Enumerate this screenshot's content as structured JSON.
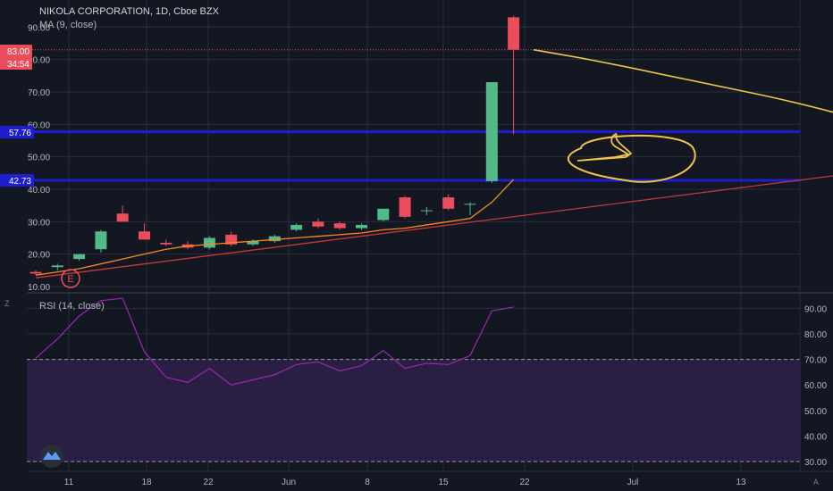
{
  "colors": {
    "background": "#131722",
    "grid": "#2a2e39",
    "text": "#b2b5be",
    "up": "#53b987",
    "down": "#eb4d5c",
    "ma": "#f68a1f",
    "trendline": "#c83838",
    "hline": "#1e1ed0",
    "rsi_line": "#9c27b0",
    "rsi_band": "#2a1e45",
    "drawing": "#f2c44d"
  },
  "header": {
    "title": "NIKOLA CORPORATION, 1D, Cboe BZX",
    "indicator": "MA (9, close)"
  },
  "price_badges": {
    "last": "83.00",
    "countdown": "34:54",
    "level_high": "57.76",
    "level_low": "42.73"
  },
  "event_marker": "E",
  "rsi_header": "RSI (14, close)",
  "icons": {
    "zoom_left": "Z",
    "auto_scale": "A",
    "watermark": "tradingview-logo-icon"
  },
  "chart_data": [
    {
      "type": "candlestick",
      "title": "NIKOLA CORPORATION, 1D, Cboe BZX",
      "x_tick_labels": [
        "11",
        "18",
        "22",
        "Jun",
        "8",
        "15",
        "22",
        "Jul",
        "13"
      ],
      "y_ticks": [
        "10.00",
        "20.00",
        "30.00",
        "40.00",
        "50.00",
        "60.00",
        "70.00",
        "80.00",
        "90.00"
      ],
      "y_range": [
        8,
        97
      ],
      "candles": [
        {
          "o": 14.5,
          "h": 15.0,
          "l": 13.5,
          "c": 14.0
        },
        {
          "o": 16.0,
          "h": 17.0,
          "l": 15.0,
          "c": 16.5
        },
        {
          "o": 18.5,
          "h": 20.0,
          "l": 18.0,
          "c": 20.0
        },
        {
          "o": 21.5,
          "h": 27.5,
          "l": 20.5,
          "c": 27.0
        },
        {
          "o": 32.5,
          "h": 35.0,
          "l": 30.0,
          "c": 30.0
        },
        {
          "o": 27.0,
          "h": 29.5,
          "l": 24.5,
          "c": 24.5
        },
        {
          "o": 23.5,
          "h": 24.5,
          "l": 22.5,
          "c": 23.0
        },
        {
          "o": 23.0,
          "h": 24.0,
          "l": 21.5,
          "c": 22.0
        },
        {
          "o": 22.0,
          "h": 25.5,
          "l": 21.5,
          "c": 25.0
        },
        {
          "o": 26.0,
          "h": 27.0,
          "l": 22.5,
          "c": 23.0
        },
        {
          "o": 23.0,
          "h": 24.5,
          "l": 22.5,
          "c": 24.0
        },
        {
          "o": 24.0,
          "h": 26.0,
          "l": 23.5,
          "c": 25.5
        },
        {
          "o": 27.5,
          "h": 29.5,
          "l": 27.0,
          "c": 29.0
        },
        {
          "o": 30.0,
          "h": 31.0,
          "l": 28.0,
          "c": 28.5
        },
        {
          "o": 29.5,
          "h": 30.0,
          "l": 27.5,
          "c": 28.0
        },
        {
          "o": 28.0,
          "h": 29.5,
          "l": 27.5,
          "c": 29.0
        },
        {
          "o": 30.5,
          "h": 34.0,
          "l": 30.0,
          "c": 34.0
        },
        {
          "o": 37.5,
          "h": 38.0,
          "l": 31.0,
          "c": 31.5
        },
        {
          "o": 33.5,
          "h": 34.5,
          "l": 32.0,
          "c": 33.5
        },
        {
          "o": 37.5,
          "h": 38.5,
          "l": 33.5,
          "c": 34.0
        },
        {
          "o": 35.5,
          "h": 36.0,
          "l": 32.0,
          "c": 35.5
        },
        {
          "o": 42.5,
          "h": 73.0,
          "l": 42.0,
          "c": 73.0
        },
        {
          "o": 93.0,
          "h": 93.5,
          "l": 57.0,
          "c": 83.0
        }
      ],
      "ma_values": [
        13.5,
        14.5,
        15.5,
        17.0,
        18.5,
        20.0,
        21.5,
        22.5,
        23.0,
        23.5,
        24.0,
        24.5,
        25.0,
        25.5,
        26.0,
        26.5,
        27.5,
        28.0,
        29.0,
        30.0,
        31.0,
        36.0,
        43.0
      ],
      "ma_drawn_extension": [
        [
          23,
          83.0
        ],
        [
          26,
          79.5
        ],
        [
          31,
          72.5
        ],
        [
          35,
          67.0
        ],
        [
          40,
          58.0
        ],
        [
          44,
          54.5
        ],
        [
          47,
          51.5
        ]
      ],
      "trendline": [
        [
          0,
          12.7
        ],
        [
          50,
          55.5
        ]
      ],
      "hlines": [
        57.76,
        42.73
      ],
      "last_price_line": 83.0
    },
    {
      "type": "line",
      "title": "RSI (14, close)",
      "y_ticks": [
        "30.00",
        "40.00",
        "50.00",
        "60.00",
        "70.00",
        "80.00",
        "90.00"
      ],
      "y_range": [
        26,
        95
      ],
      "band": [
        30,
        70
      ],
      "values": [
        70.5,
        78,
        87,
        93,
        96,
        73,
        63,
        61,
        66.5,
        60,
        62,
        64,
        68,
        69,
        65.5,
        67.5,
        73.5,
        66.5,
        68.5,
        68,
        71.5,
        89,
        90.5
      ]
    }
  ]
}
